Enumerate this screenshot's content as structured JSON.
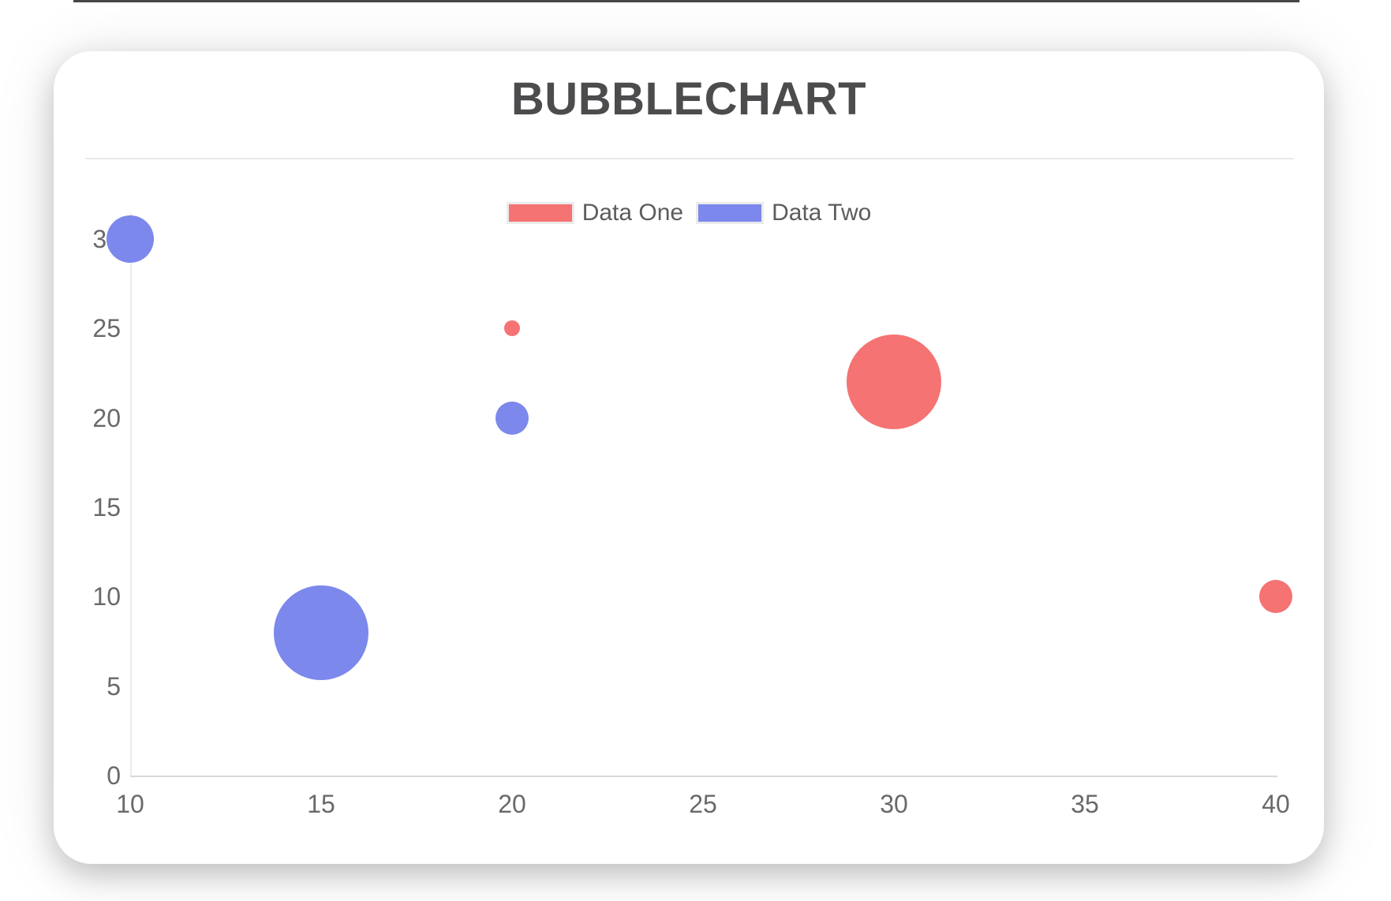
{
  "page": {
    "background": "#ffffff",
    "top_strip_color": "#474747"
  },
  "chart_data": {
    "type": "bubble",
    "title": "BUBBLECHART",
    "xlabel": "",
    "ylabel": "",
    "xlim": [
      10,
      40
    ],
    "ylim": [
      0,
      30
    ],
    "x_ticks": [
      "10",
      "15",
      "20",
      "25",
      "30",
      "35",
      "40"
    ],
    "y_ticks": [
      "0",
      "5",
      "10",
      "15",
      "20",
      "25",
      "30"
    ],
    "grid": false,
    "legend_position": "top-center",
    "series": [
      {
        "name": "Data One",
        "color": "#f57373",
        "points": [
          {
            "x": 20,
            "y": 25,
            "r": 10
          },
          {
            "x": 30,
            "y": 22,
            "r": 60
          },
          {
            "x": 40,
            "y": 10,
            "r": 21
          }
        ]
      },
      {
        "name": "Data Two",
        "color": "#7c88ec",
        "points": [
          {
            "x": 10,
            "y": 30,
            "r": 30
          },
          {
            "x": 20,
            "y": 20,
            "r": 21
          },
          {
            "x": 15,
            "y": 8,
            "r": 60
          }
        ]
      }
    ],
    "colors": {
      "title_text": "#4c4c4e",
      "tick_text": "#69696b",
      "legend_text": "#5c5c5e",
      "x_axis_line": "#d9d9d9",
      "y_axis_line": "#ececec",
      "divider": "#e9e9e9"
    }
  }
}
